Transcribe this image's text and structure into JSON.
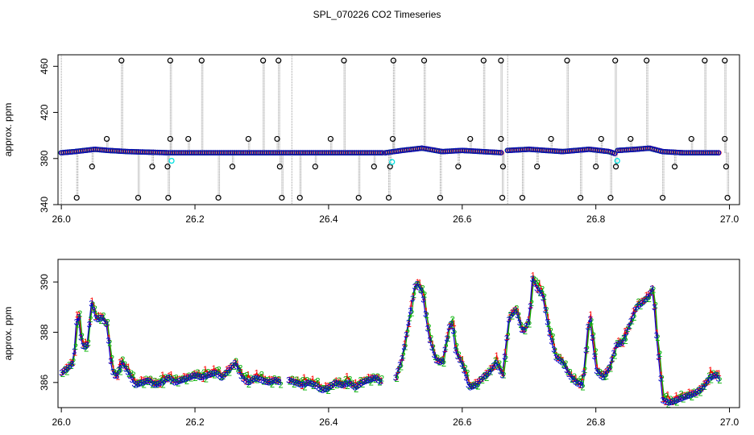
{
  "title": "SPL_070226  CO2 Timeseries",
  "colors": {
    "ch1": "#ff0000",
    "ch2": "#00b000",
    "ch3": "#0000cc",
    "cyan": "#00e0e0",
    "grey": "#9a9a9a",
    "black": "#000000"
  },
  "chart_data": [
    {
      "type": "scatter",
      "ylabel": "approx. ppm",
      "xlim": [
        25.995,
        27.015
      ],
      "ylim": [
        340,
        470
      ],
      "x_ticks": [
        "26.0",
        "26.2",
        "26.4",
        "26.6",
        "26.8",
        "27.0"
      ],
      "y_ticks": [
        "340",
        "380",
        "420",
        "460"
      ],
      "baseline_segments": [
        {
          "x": [
            26.0,
            26.02,
            26.035,
            26.05,
            26.07,
            26.1,
            26.16,
            26.3,
            26.34,
            26.48
          ],
          "y": [
            385,
            386,
            387,
            388,
            387,
            386,
            385,
            385,
            385,
            385
          ]
        },
        {
          "x": [
            26.485,
            26.51,
            26.54,
            26.57,
            26.6,
            26.66
          ],
          "y": [
            385,
            387,
            389,
            386,
            387,
            385
          ]
        },
        {
          "x": [
            26.668,
            26.7,
            26.75,
            26.79,
            26.82,
            26.83
          ],
          "y": [
            387,
            388,
            386,
            388,
            386,
            384
          ]
        },
        {
          "x": [
            26.833,
            26.86,
            26.88,
            26.9,
            26.93,
            26.985
          ],
          "y": [
            387,
            388,
            389,
            386,
            385,
            385
          ]
        }
      ],
      "outliers_high": {
        "y": 465,
        "x": [
          26.09,
          26.163,
          26.21,
          26.302,
          26.325,
          26.423,
          26.497,
          26.543,
          26.632,
          26.658,
          26.757,
          26.829,
          26.876,
          26.963,
          26.993
        ]
      },
      "outliers_low": {
        "y": 346,
        "x": [
          26.023,
          26.115,
          26.16,
          26.235,
          26.33,
          26.357,
          26.445,
          26.49,
          26.567,
          26.66,
          26.69,
          26.777,
          26.822,
          26.9,
          26.997
        ]
      },
      "outliers_mid_high": {
        "y": 397,
        "x": [
          26.068,
          26.163,
          26.19,
          26.28,
          26.323,
          26.403,
          26.496,
          26.612,
          26.658,
          26.733,
          26.808,
          26.852,
          26.943,
          26.993
        ]
      },
      "outliers_mid_low": {
        "y": 373,
        "x": [
          26.046,
          26.136,
          26.159,
          26.256,
          26.327,
          26.38,
          26.468,
          26.492,
          26.594,
          26.661,
          26.712,
          26.8,
          26.83,
          26.918,
          26.995
        ]
      },
      "cyan_points": {
        "x": [
          26.165,
          26.495,
          26.832
        ],
        "y": [
          378,
          377,
          378
        ]
      }
    },
    {
      "type": "line",
      "ylabel": "approx. ppm",
      "xlim": [
        25.995,
        27.015
      ],
      "ylim": [
        385.0,
        390.9
      ],
      "x_ticks": [
        "26.0",
        "26.2",
        "26.4",
        "26.6",
        "26.8",
        "27.0"
      ],
      "y_ticks": [
        "386",
        "388",
        "390"
      ],
      "segments": [
        {
          "x": [
            26.0,
            26.01,
            26.018,
            26.024,
            26.03,
            26.038,
            26.045,
            26.052,
            26.06,
            26.068,
            26.075,
            26.082,
            26.09,
            26.1,
            26.11,
            26.12,
            26.13,
            26.14,
            26.15,
            26.16,
            26.17,
            26.18,
            26.19,
            26.2,
            26.21,
            26.22,
            26.23,
            26.24,
            26.25,
            26.26,
            26.27,
            26.28,
            26.29,
            26.3,
            26.31,
            26.32,
            26.328
          ],
          "y": [
            386.4,
            386.6,
            386.8,
            389.0,
            387.5,
            387.4,
            389.2,
            388.5,
            388.6,
            388.3,
            386.5,
            386.2,
            386.8,
            386.4,
            385.9,
            386.0,
            386.1,
            385.9,
            386.0,
            386.2,
            386.0,
            386.1,
            386.2,
            386.3,
            386.2,
            386.3,
            386.4,
            386.2,
            386.5,
            386.8,
            386.2,
            386.0,
            386.2,
            386.1,
            386.0,
            386.1,
            386.0
          ]
        },
        {
          "x": [
            26.34,
            26.35,
            26.36,
            26.37,
            26.38,
            26.39,
            26.4,
            26.41,
            26.42,
            26.43,
            26.44,
            26.45,
            26.46,
            26.47,
            26.48
          ],
          "y": [
            386.1,
            386.0,
            385.9,
            386.0,
            385.9,
            385.7,
            385.8,
            386.0,
            385.9,
            386.0,
            385.8,
            386.0,
            386.1,
            386.2,
            386.0
          ]
        },
        {
          "x": [
            26.5,
            26.51,
            26.52,
            26.53,
            26.535,
            26.54,
            26.55,
            26.56,
            26.57,
            26.58,
            26.585,
            26.59,
            26.6,
            26.61,
            26.62,
            26.63,
            26.64,
            26.65,
            26.66,
            26.67,
            26.68,
            26.69,
            26.7,
            26.705,
            26.71,
            26.72,
            26.73,
            26.74,
            26.75,
            26.76,
            26.77,
            26.78,
            26.79,
            26.8,
            26.81,
            26.82,
            26.83,
            26.84,
            26.85,
            26.86,
            26.87,
            26.88,
            26.885,
            26.89,
            26.9,
            26.91,
            26.92,
            26.93,
            26.94,
            26.95,
            26.96,
            26.97,
            26.98,
            26.985
          ],
          "y": [
            386.2,
            387.0,
            388.5,
            390.0,
            389.8,
            389.6,
            387.8,
            386.9,
            386.8,
            388.2,
            388.4,
            387.2,
            386.7,
            385.8,
            385.9,
            386.2,
            386.4,
            386.8,
            386.3,
            388.6,
            388.9,
            388.0,
            388.5,
            390.2,
            389.8,
            389.5,
            388.0,
            387.0,
            386.8,
            386.3,
            386.0,
            385.9,
            388.8,
            386.5,
            386.2,
            386.6,
            387.5,
            387.6,
            388.3,
            389.0,
            389.2,
            389.5,
            389.8,
            388.0,
            385.3,
            385.2,
            385.3,
            385.4,
            385.5,
            385.6,
            385.8,
            386.2,
            386.3,
            386.1
          ]
        }
      ],
      "red_offsets": [
        0.02,
        0.05,
        0.1,
        0.04,
        0.15,
        0.05,
        -0.05,
        0.3,
        0.1,
        0.0,
        0.08,
        0.2,
        0.05,
        0.1,
        0.12,
        0.1,
        0.05,
        0.15,
        0.1,
        0.05
      ],
      "green_offsets": [
        -0.05,
        0.08,
        -0.1,
        0.12,
        0.0,
        0.1,
        0.2,
        -0.1,
        0.15,
        0.05,
        0.0,
        -0.08,
        0.1,
        0.2,
        -0.05,
        0.05,
        0.08,
        0.0,
        -0.1,
        0.1
      ]
    }
  ]
}
